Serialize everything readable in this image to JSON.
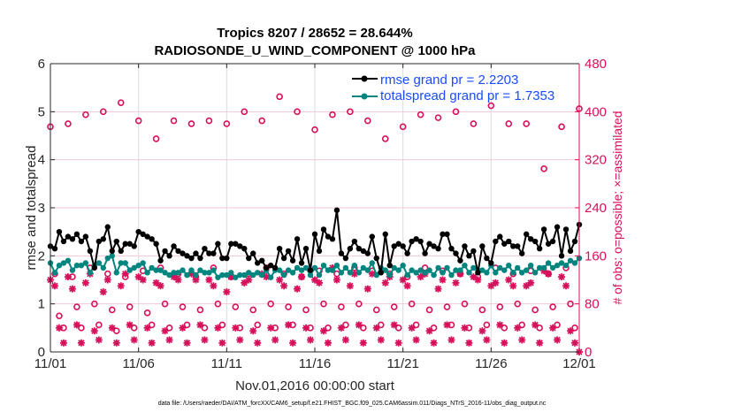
{
  "chart_data": {
    "type": "line",
    "title": "Tropics 8207 / 28652 = 28.644%",
    "subtitle": "RADIOSONDE_U_WIND_COMPONENT @ 1000 hPa",
    "xlabel": "Nov.01,2016 00:00:00 start",
    "ylabel": "rmse and totalspread",
    "ylabel_right": "# of obs: o=possible; ×=assimilated",
    "footer": "data file: /Users/raeder/DAI/ATM_forcXX/CAM6_setup/f.e21.FHIST_BGC.f09_025.CAM6assim.011/Diags_NTrS_2016-11/obs_diag_output.nc",
    "x_start": "2016-11-01 00:00",
    "x_interval_hours": 6,
    "xticks": [
      "11/01",
      "11/06",
      "11/11",
      "11/16",
      "11/21",
      "11/26",
      "12/01"
    ],
    "xlim_days": [
      0,
      30
    ],
    "ylim": [
      0,
      6
    ],
    "yticks": [
      "0",
      "1",
      "2",
      "3",
      "4",
      "5",
      "6"
    ],
    "ylim_right": [
      0,
      480
    ],
    "yticks_right": [
      "0",
      "80",
      "160",
      "240",
      "320",
      "400",
      "480"
    ],
    "grid": true,
    "legend_placement": "top-right",
    "colors": {
      "rmse": "#000000",
      "spread": "#00857f",
      "obs": "#d6105a",
      "legend_text": "#1a4cff"
    },
    "series": [
      {
        "name": "rmse grand pr = 2.2203",
        "axis": "left",
        "values": [
          2.2,
          2.15,
          2.5,
          2.3,
          2.4,
          2.35,
          2.45,
          2.3,
          2.4,
          2.1,
          1.75,
          2.3,
          2.35,
          2.6,
          2.1,
          2.3,
          2.1,
          2.25,
          2.25,
          2.2,
          2.5,
          2.45,
          2.4,
          2.35,
          2.25,
          1.9,
          2.1,
          2.0,
          2.2,
          2.1,
          2.05,
          2.0,
          1.95,
          2.05,
          1.95,
          2.15,
          2.05,
          2.05,
          2.25,
          1.95,
          1.95,
          2.25,
          2.25,
          2.2,
          2.15,
          1.95,
          2.05,
          1.85,
          1.9,
          1.75,
          1.8,
          1.75,
          2.15,
          1.95,
          2.1,
          1.9,
          2.35,
          1.85,
          2.15,
          1.7,
          2.45,
          2.1,
          2.55,
          2.4,
          2.35,
          2.95,
          2.05,
          1.95,
          2.15,
          2.3,
          2.15,
          2.1,
          2.05,
          2.4,
          1.95,
          1.65,
          2.45,
          1.8,
          2.2,
          2.25,
          2.2,
          2.05,
          2.3,
          2.35,
          2.3,
          2.05,
          2.25,
          2.2,
          2.15,
          2.45,
          2.45,
          2.15,
          2.05,
          1.9,
          2.2,
          2.0,
          2.1,
          1.65,
          2.2,
          1.95,
          1.85,
          2.3,
          2.4,
          2.25,
          2.3,
          2.2,
          2.2,
          2.05,
          2.45,
          2.35,
          2.3,
          2.15,
          2.55,
          2.25,
          2.3,
          2.6,
          2.0,
          2.55,
          2.1,
          2.3,
          2.65
        ]
      },
      {
        "name": "totalspread grand pr = 1.7353",
        "axis": "left",
        "values": [
          1.85,
          1.65,
          1.8,
          1.85,
          1.9,
          1.7,
          1.8,
          1.8,
          1.85,
          1.65,
          1.8,
          1.85,
          1.75,
          1.95,
          2.0,
          1.65,
          1.85,
          1.85,
          1.7,
          1.75,
          1.8,
          1.85,
          1.65,
          1.75,
          1.7,
          1.7,
          1.65,
          1.6,
          1.65,
          1.65,
          1.7,
          1.6,
          1.7,
          1.6,
          1.7,
          1.65,
          1.65,
          1.7,
          1.55,
          1.6,
          1.6,
          1.65,
          1.55,
          1.6,
          1.6,
          1.65,
          1.6,
          1.65,
          1.6,
          1.7,
          1.55,
          1.7,
          1.7,
          1.6,
          1.7,
          1.65,
          1.75,
          1.7,
          1.75,
          1.6,
          1.75,
          1.6,
          1.8,
          1.7,
          1.7,
          1.8,
          1.65,
          1.75,
          1.65,
          1.8,
          1.65,
          1.75,
          1.7,
          1.85,
          1.6,
          1.75,
          1.7,
          1.6,
          1.75,
          1.7,
          1.8,
          1.6,
          1.7,
          1.65,
          1.7,
          1.65,
          1.7,
          1.6,
          1.75,
          1.65,
          1.75,
          1.6,
          1.7,
          1.7,
          1.8,
          1.65,
          1.75,
          1.7,
          1.7,
          1.65,
          1.8,
          1.65,
          1.75,
          1.7,
          1.8,
          1.65,
          1.75,
          1.65,
          1.7,
          1.8,
          1.65,
          1.75,
          1.75,
          1.85,
          1.75,
          1.8,
          1.85,
          1.8,
          1.9,
          1.85,
          1.95
        ]
      },
      {
        "name": "possible",
        "axis": "right",
        "marker": "o",
        "values": [
          375,
          130,
          60,
          40,
          380,
          125,
          75,
          40,
          395,
          140,
          80,
          45,
          400,
          130,
          70,
          35,
          415,
          125,
          75,
          40,
          385,
          135,
          65,
          45,
          355,
          140,
          80,
          40,
          385,
          130,
          75,
          45,
          380,
          125,
          70,
          40,
          385,
          140,
          80,
          45,
          380,
          125,
          75,
          40,
          400,
          130,
          70,
          45,
          385,
          140,
          80,
          40,
          425,
          130,
          75,
          45,
          400,
          125,
          70,
          40,
          370,
          135,
          80,
          40,
          395,
          130,
          75,
          45,
          400,
          140,
          80,
          40,
          385,
          135,
          70,
          45,
          355,
          130,
          75,
          40,
          375,
          125,
          80,
          45,
          395,
          140,
          70,
          40,
          390,
          135,
          75,
          45,
          400,
          130,
          80,
          40,
          380,
          125,
          70,
          45,
          410,
          140,
          75,
          40,
          380,
          130,
          80,
          45,
          380,
          135,
          70,
          40,
          305,
          130,
          75,
          45,
          375,
          140,
          80,
          40,
          405
        ]
      },
      {
        "name": "assimilated",
        "axis": "right",
        "marker": "x",
        "values": [
          120,
          110,
          40,
          15,
          125,
          105,
          45,
          15,
          115,
          130,
          35,
          20,
          100,
          120,
          40,
          15,
          110,
          130,
          45,
          20,
          125,
          120,
          40,
          15,
          115,
          110,
          35,
          20,
          125,
          120,
          40,
          15,
          130,
          120,
          45,
          20,
          120,
          110,
          40,
          15,
          100,
          125,
          40,
          20,
          115,
          120,
          35,
          15,
          130,
          125,
          40,
          20,
          120,
          110,
          45,
          15,
          105,
          125,
          40,
          20,
          120,
          115,
          35,
          15,
          140,
          120,
          40,
          20,
          110,
          130,
          45,
          15,
          105,
          130,
          40,
          20,
          115,
          125,
          45,
          15,
          120,
          110,
          40,
          20,
          125,
          130,
          35,
          15,
          105,
          120,
          45,
          20,
          115,
          130,
          40,
          15,
          125,
          120,
          35,
          20,
          110,
          115,
          45,
          15,
          120,
          110,
          40,
          20,
          110,
          115,
          45,
          15,
          135,
          130,
          40,
          20,
          125,
          110,
          35,
          15,
          0
        ]
      }
    ]
  }
}
